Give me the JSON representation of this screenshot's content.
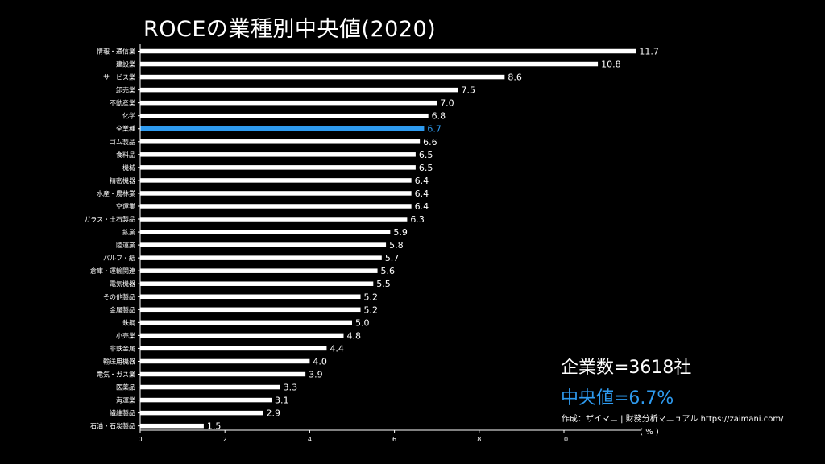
{
  "chart_data": {
    "type": "bar",
    "orientation": "horizontal",
    "title": "ROCEの業種別中央値(2020)",
    "xlabel": "( % )",
    "ylabel": "",
    "xlim": [
      0,
      12
    ],
    "xticks": [
      0,
      2,
      4,
      6,
      8,
      10
    ],
    "grid": false,
    "highlight_category": "全業種",
    "bar_color": "#ffffff",
    "highlight_color": "#2e9bf0",
    "categories": [
      "情報・通信業",
      "建設業",
      "サービス業",
      "卸売業",
      "不動産業",
      "化学",
      "全業種",
      "ゴム製品",
      "食料品",
      "機械",
      "精密機器",
      "水産・農林業",
      "空運業",
      "ガラス・土石製品",
      "鉱業",
      "陸運業",
      "パルプ・紙",
      "倉庫・運輸関連",
      "電気機器",
      "その他製品",
      "金属製品",
      "鉄鋼",
      "小売業",
      "非鉄金属",
      "輸送用機器",
      "電気・ガス業",
      "医薬品",
      "海運業",
      "繊維製品",
      "石油・石炭製品"
    ],
    "values": [
      11.7,
      10.8,
      8.6,
      7.5,
      7.0,
      6.8,
      6.7,
      6.6,
      6.5,
      6.5,
      6.4,
      6.4,
      6.4,
      6.3,
      5.9,
      5.8,
      5.7,
      5.6,
      5.5,
      5.2,
      5.2,
      5.0,
      4.8,
      4.4,
      4.0,
      3.9,
      3.3,
      3.1,
      2.9,
      1.5
    ],
    "value_labels": [
      "11.7",
      "10.8",
      "8.6",
      "7.5",
      "7.0",
      "6.8",
      "6.7",
      "6.6",
      "6.5",
      "6.5",
      "6.4",
      "6.4",
      "6.4",
      "6.3",
      "5.9",
      "5.8",
      "5.7",
      "5.6",
      "5.5",
      "5.2",
      "5.2",
      "5.0",
      "4.8",
      "4.4",
      "4.0",
      "3.9",
      "3.3",
      "3.1",
      "2.9",
      "1.5"
    ]
  },
  "annotations": {
    "company_count": "企業数=3618社",
    "median": "中央値=6.7%",
    "credit": "作成：ザイマニ | 財務分析マニュアル https://zaimani.com/"
  }
}
